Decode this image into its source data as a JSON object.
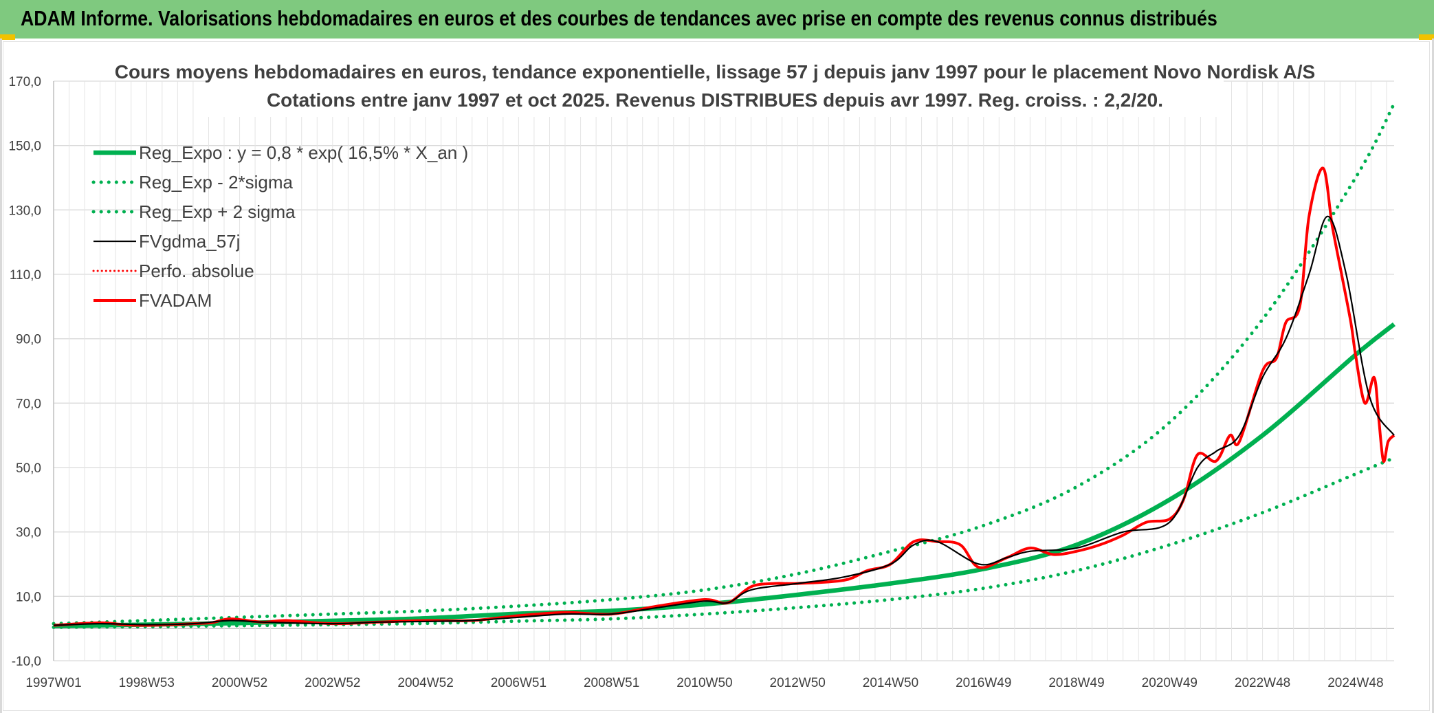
{
  "header": {
    "title": "ADAM Informe. Valorisations hebdomadaires en euros et des courbes de tendances avec prise en compte des revenus connus distribués"
  },
  "chart_data": {
    "type": "line",
    "title": "Cours moyens hebdomadaires en euros, tendance exponentielle, lissage 57 j depuis janv 1997 pour le placement Novo Nordisk A/S",
    "subtitle": "Cotations entre janv 1997 et oct 2025. Revenus DISTRIBUES depuis avr 1997. Reg. croiss. : 2,2/20.",
    "xlabel": "",
    "ylabel": "",
    "ylim": [
      -10,
      170
    ],
    "xlim": [
      1997.0,
      2025.83
    ],
    "y_ticks": [
      "-10,0",
      "10,0",
      "30,0",
      "50,0",
      "70,0",
      "90,0",
      "110,0",
      "130,0",
      "150,0",
      "170,0"
    ],
    "y_tick_values": [
      -10,
      10,
      30,
      50,
      70,
      90,
      110,
      130,
      150,
      170
    ],
    "x_ticks": [
      "1997W01",
      "1998W53",
      "2000W52",
      "2002W52",
      "2004W52",
      "2006W51",
      "2008W51",
      "2010W50",
      "2012W50",
      "2014W50",
      "2016W49",
      "2018W49",
      "2020W49",
      "2022W48",
      "2024W48"
    ],
    "x_tick_values": [
      1997.0,
      1999.0,
      2001.0,
      2003.0,
      2005.0,
      2007.0,
      2009.0,
      2011.0,
      2013.0,
      2015.0,
      2017.0,
      2019.0,
      2021.0,
      2023.0,
      2025.0
    ],
    "grid": true,
    "legend_position": "top-left",
    "series": [
      {
        "name": "Reg_Expo : y = 0,8 * exp( 16,5% *  X_an )",
        "color": "#00b050",
        "style": "solid",
        "x": [
          1997,
          1999,
          2001,
          2003,
          2005,
          2007,
          2009,
          2011,
          2013,
          2015,
          2017,
          2019,
          2021,
          2023,
          2025,
          2025.83
        ],
        "values": [
          0.8,
          1.2,
          1.7,
          2.4,
          3.2,
          4.6,
          5.5,
          7.5,
          10.5,
          14.0,
          18.5,
          26.0,
          40.0,
          60.0,
          85.0,
          94.5
        ]
      },
      {
        "name": "Reg_Exp - 2*sigma",
        "color": "#00b050",
        "style": "dotted",
        "x": [
          1997,
          1999,
          2001,
          2003,
          2005,
          2007,
          2009,
          2011,
          2013,
          2015,
          2017,
          2019,
          2021,
          2023,
          2025,
          2025.83
        ],
        "values": [
          0.4,
          0.6,
          0.9,
          1.2,
          1.6,
          2.3,
          3.0,
          4.5,
          6.5,
          9.0,
          12.5,
          18.0,
          26.0,
          36.0,
          48.0,
          53.0
        ]
      },
      {
        "name": "Reg_Exp + 2 sigma",
        "color": "#00b050",
        "style": "dotted",
        "x": [
          1997,
          1999,
          2001,
          2003,
          2005,
          2007,
          2009,
          2011,
          2013,
          2015,
          2017,
          2019,
          2021,
          2023,
          2025,
          2025.83
        ],
        "values": [
          1.5,
          2.5,
          3.5,
          4.5,
          5.5,
          7.0,
          9.0,
          12.0,
          17.0,
          24.0,
          32.0,
          44.0,
          64.0,
          96.0,
          140.0,
          163.0
        ]
      },
      {
        "name": "FVgdma_57j",
        "color": "#000000",
        "style": "solid",
        "x": [
          1997,
          1998,
          1999,
          2000,
          2000.8,
          2001.5,
          2003,
          2004,
          2005,
          2006,
          2007,
          2008,
          2009,
          2010,
          2011,
          2011.5,
          2012,
          2013,
          2014,
          2015,
          2015.5,
          2016,
          2016.9,
          2017.5,
          2018,
          2019,
          2020,
          2021,
          2021.6,
          2022,
          2022.5,
          2023,
          2023.5,
          2024,
          2024.4,
          2024.8,
          2025.3,
          2025.83
        ],
        "values": [
          1,
          1.5,
          1.2,
          1.5,
          2.5,
          2.0,
          1.5,
          2.0,
          2.2,
          2.5,
          3.5,
          4.5,
          4.5,
          6.5,
          8.5,
          8.0,
          12.0,
          14.0,
          16.0,
          20.0,
          26.0,
          27.0,
          20.0,
          22.0,
          24.0,
          25.0,
          30.0,
          33.0,
          50.0,
          55.0,
          60.0,
          78.0,
          90.0,
          110.0,
          128.0,
          110.0,
          72.0,
          60.0
        ]
      },
      {
        "name": "Perfo. absolue",
        "color": "#ff0000",
        "style": "dotted",
        "x": [],
        "values": []
      },
      {
        "name": "FVADAM",
        "color": "#ff0000",
        "style": "solid",
        "x": [
          1997,
          1998,
          1998.5,
          1999,
          2000,
          2000.4,
          2000.8,
          2001.5,
          2002,
          2003,
          2004,
          2005,
          2006,
          2007,
          2008,
          2009,
          2010,
          2011,
          2011.5,
          2012,
          2012.5,
          2013,
          2014,
          2014.5,
          2015,
          2015.5,
          2016,
          2016.5,
          2016.9,
          2017.5,
          2018,
          2018.5,
          2019,
          2019.5,
          2020,
          2020.5,
          2021,
          2021.3,
          2021.6,
          2022,
          2022.3,
          2022.5,
          2023,
          2023.3,
          2023.5,
          2023.8,
          2024,
          2024.3,
          2024.5,
          2024.7,
          2024.9,
          2025,
          2025.2,
          2025.4,
          2025.5,
          2025.6,
          2025.7,
          2025.83
        ],
        "values": [
          1,
          1.8,
          1.2,
          1.0,
          1.5,
          1.8,
          3.0,
          2.0,
          2.5,
          1.5,
          2.0,
          2.5,
          2.5,
          4.0,
          5.0,
          4.5,
          7.0,
          9.0,
          8.0,
          13.0,
          14.0,
          14.0,
          15.0,
          18.0,
          20.0,
          27.0,
          27.0,
          26.0,
          19.0,
          22.0,
          25.0,
          23.0,
          24.0,
          26.0,
          29.0,
          33.0,
          34.0,
          40.0,
          54.0,
          52.0,
          60.0,
          58.0,
          80.0,
          84.0,
          95.0,
          100.0,
          128.0,
          143.0,
          125.0,
          110.0,
          95.0,
          85.0,
          70.0,
          78.0,
          65.0,
          52.0,
          58.0,
          60.0
        ]
      }
    ]
  }
}
